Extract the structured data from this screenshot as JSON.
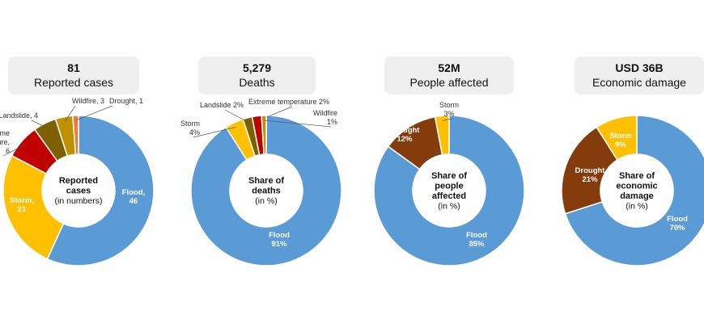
{
  "chart_data": [
    {
      "type": "pie",
      "donut": true,
      "header_value": "81",
      "header_label": "Reported cases",
      "center_title": [
        "Reported",
        "cases"
      ],
      "center_sub": "(in numbers)",
      "slices": [
        {
          "name": "Flood",
          "value": 46,
          "label": [
            "Flood,",
            "46"
          ],
          "color": "#5b9bd5"
        },
        {
          "name": "Storm",
          "value": 21,
          "label": [
            "Storm,",
            "21"
          ],
          "color": "#ffc000"
        },
        {
          "name": "Extreme temperature",
          "value": 6,
          "label": [
            "Extreme",
            "temperature,",
            "6"
          ],
          "color": "#c00000"
        },
        {
          "name": "Landslide",
          "value": 4,
          "label": [
            "Landslide, 4"
          ],
          "color": "#7f6000"
        },
        {
          "name": "Wildfire",
          "value": 3,
          "label": [
            "Wildfire, 3"
          ],
          "color": "#bf9000"
        },
        {
          "name": "Drought",
          "value": 1,
          "label": [
            "Drought, 1"
          ],
          "color": "#ed7d31"
        }
      ]
    },
    {
      "type": "pie",
      "donut": true,
      "header_value": "5,279",
      "header_label": "Deaths",
      "center_title": [
        "Share of",
        "deaths"
      ],
      "center_sub": "(in %)",
      "slices": [
        {
          "name": "Flood",
          "value": 91,
          "label": [
            "Flood",
            "91%"
          ],
          "color": "#5b9bd5"
        },
        {
          "name": "Storm",
          "value": 4,
          "label": [
            "Storm",
            "4%"
          ],
          "color": "#ffc000"
        },
        {
          "name": "Landslide",
          "value": 2,
          "label": [
            "Landslide 2%"
          ],
          "color": "#7f6000"
        },
        {
          "name": "Extreme temperature",
          "value": 2,
          "label": [
            "Extreme temperature 2%"
          ],
          "color": "#c00000"
        },
        {
          "name": "Wildfire",
          "value": 1,
          "label": [
            "Wildfire",
            "1%"
          ],
          "color": "#bf9000"
        }
      ]
    },
    {
      "type": "pie",
      "donut": true,
      "header_value": "52M",
      "header_label": "People affected",
      "center_title": [
        "Share of",
        "people",
        "affected"
      ],
      "center_sub": "(in %)",
      "slices": [
        {
          "name": "Flood",
          "value": 85,
          "label": [
            "Flood",
            "85%"
          ],
          "color": "#5b9bd5"
        },
        {
          "name": "Drought",
          "value": 12,
          "label": [
            "Drought",
            "12%"
          ],
          "color": "#843c0c"
        },
        {
          "name": "Storm",
          "value": 3,
          "label": [
            "Storm",
            "3%"
          ],
          "color": "#ffc000"
        }
      ]
    },
    {
      "type": "pie",
      "donut": true,
      "header_value": "USD 36B",
      "header_label": "Economic damage",
      "center_title": [
        "Share of",
        "economic",
        "damage"
      ],
      "center_sub": "(in %)",
      "slices": [
        {
          "name": "Flood",
          "value": 70,
          "label": [
            "Flood",
            "70%"
          ],
          "color": "#5b9bd5"
        },
        {
          "name": "Drought",
          "value": 21,
          "label": [
            "Drought",
            "21%"
          ],
          "color": "#843c0c"
        },
        {
          "name": "Storm",
          "value": 9,
          "label": [
            "Storm",
            "9%"
          ],
          "color": "#ffc000"
        }
      ]
    }
  ]
}
